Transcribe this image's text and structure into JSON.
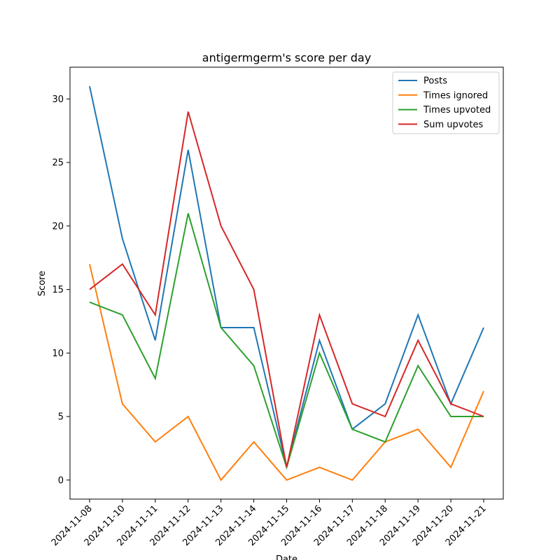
{
  "chart_data": {
    "type": "line",
    "title": "antigermgerm's score per day",
    "xlabel": "Date",
    "ylabel": "Score",
    "categories": [
      "2024-11-08",
      "2024-11-10",
      "2024-11-11",
      "2024-11-12",
      "2024-11-13",
      "2024-11-14",
      "2024-11-15",
      "2024-11-16",
      "2024-11-17",
      "2024-11-18",
      "2024-11-19",
      "2024-11-20",
      "2024-11-21"
    ],
    "ylim": [
      -1.5,
      32.5
    ],
    "yticks": [
      0,
      5,
      10,
      15,
      20,
      25,
      30
    ],
    "grid": false,
    "legend_position": "top-right",
    "series": [
      {
        "name": "Posts",
        "color": "#1f77b4",
        "values": [
          31,
          19,
          11,
          26,
          12,
          12,
          1,
          11,
          4,
          6,
          13,
          6,
          12
        ]
      },
      {
        "name": "Times ignored",
        "color": "#ff7f0e",
        "values": [
          17,
          6,
          3,
          5,
          0,
          3,
          0,
          1,
          0,
          3,
          4,
          1,
          7
        ]
      },
      {
        "name": "Times upvoted",
        "color": "#2ca02c",
        "values": [
          14,
          13,
          8,
          21,
          12,
          9,
          1,
          10,
          4,
          3,
          9,
          5,
          5
        ]
      },
      {
        "name": "Sum upvotes",
        "color": "#d62728",
        "values": [
          15,
          17,
          13,
          29,
          20,
          15,
          1,
          13,
          6,
          5,
          11,
          6,
          5
        ]
      }
    ]
  }
}
